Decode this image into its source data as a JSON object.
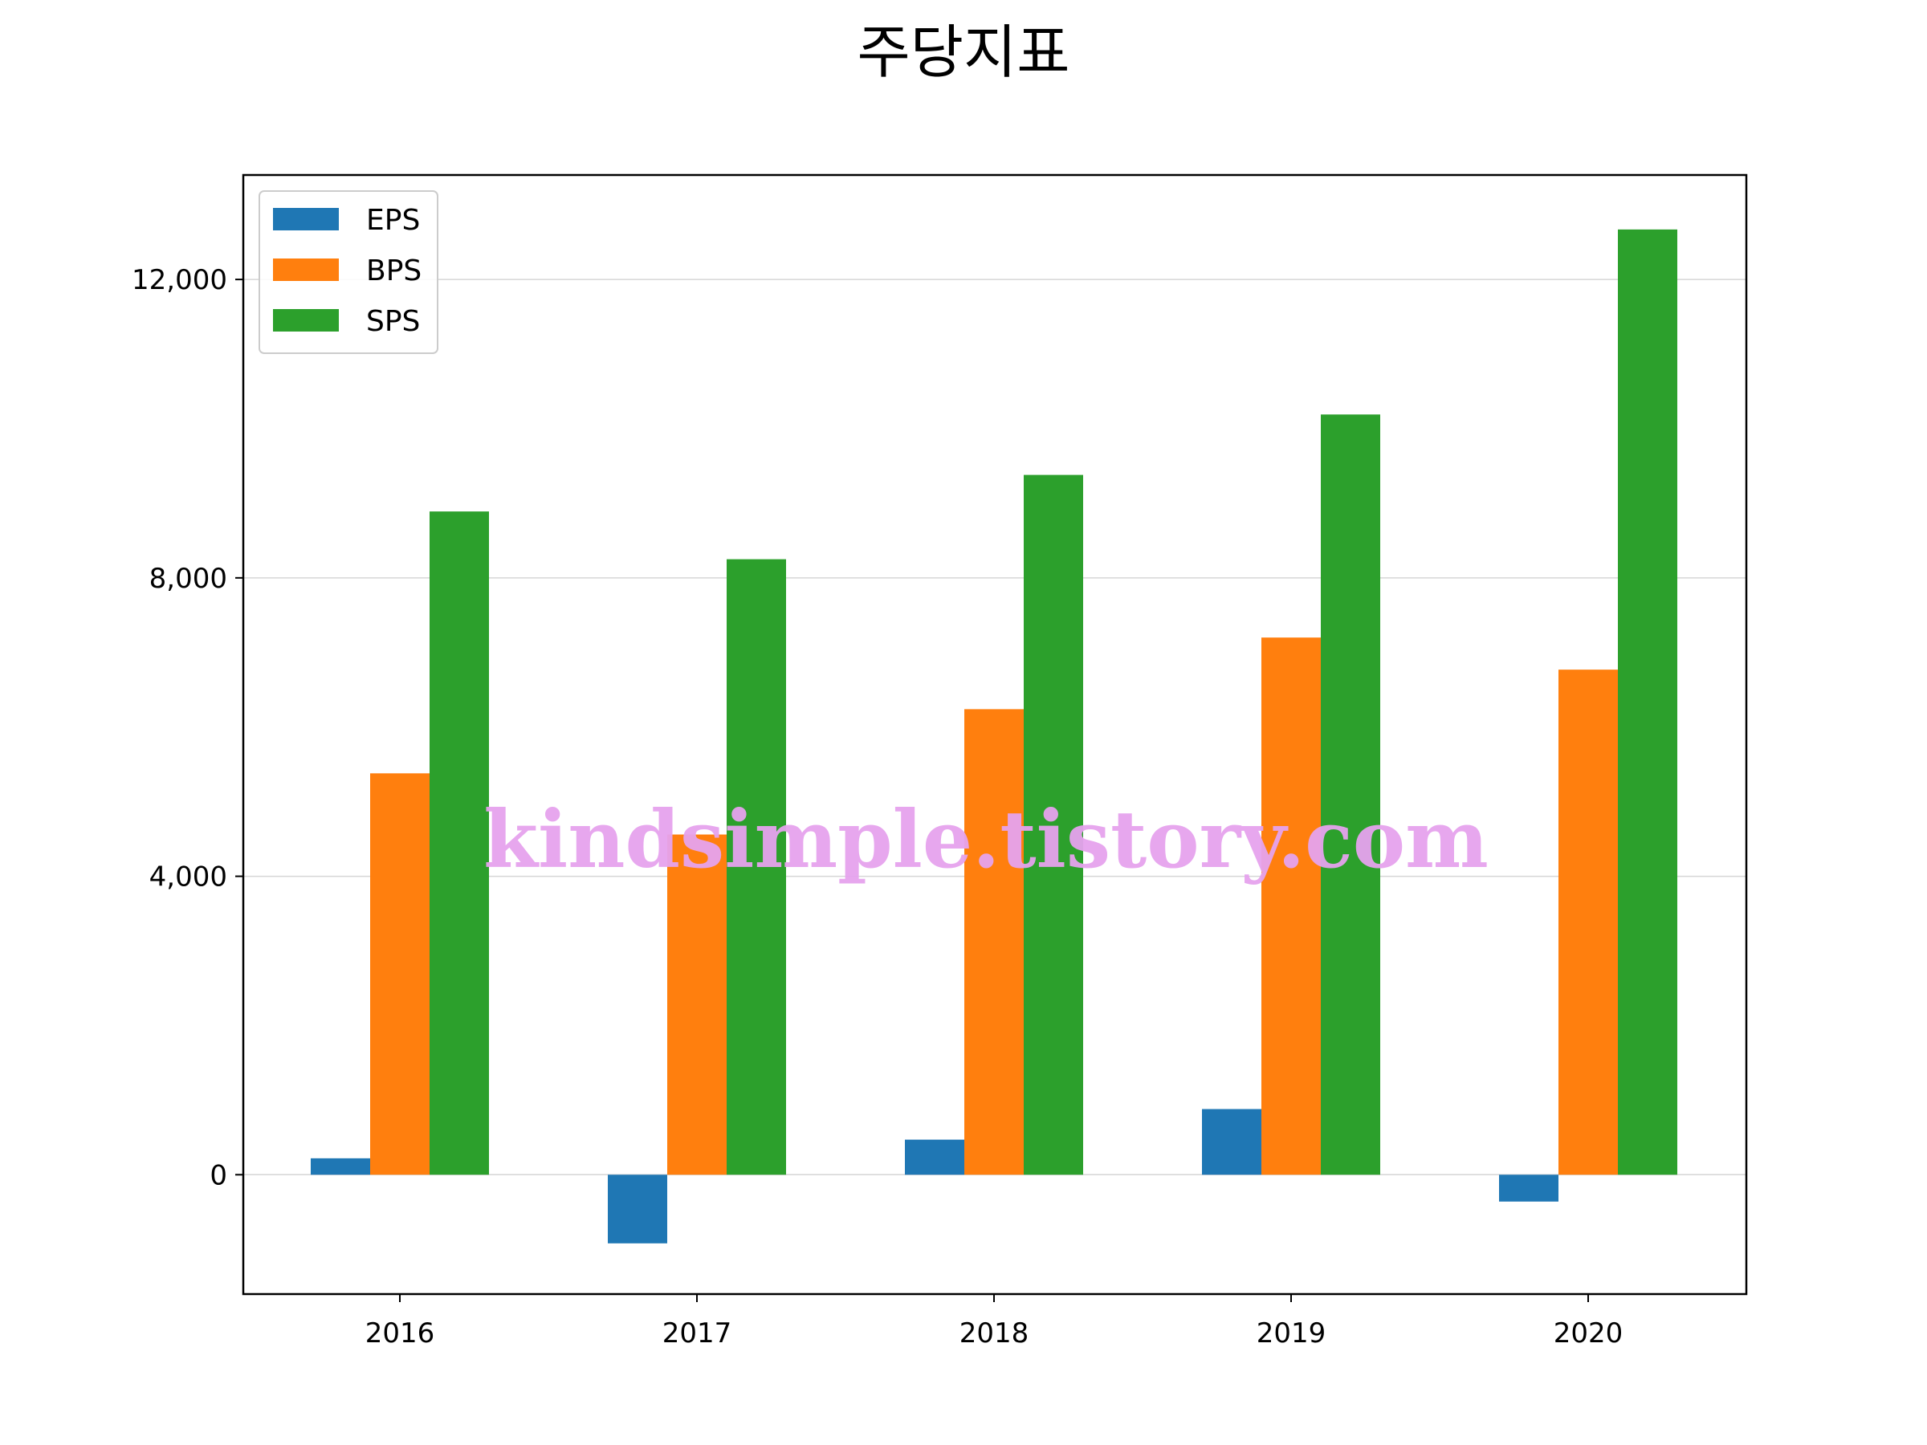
{
  "chart_data": {
    "type": "bar",
    "title": "주당지표",
    "xlabel": "",
    "ylabel": "",
    "categories": [
      "2016",
      "2017",
      "2018",
      "2019",
      "2020"
    ],
    "series": [
      {
        "name": "EPS",
        "color": "#1f77b4",
        "values": [
          220,
          -920,
          470,
          880,
          -360
        ]
      },
      {
        "name": "BPS",
        "color": "#ff7f0e",
        "values": [
          5380,
          4560,
          6240,
          7200,
          6770
        ]
      },
      {
        "name": "SPS",
        "color": "#2ca02c",
        "values": [
          8890,
          8250,
          9380,
          10190,
          12670
        ]
      }
    ],
    "ylim": [
      -1600,
      13400
    ],
    "yticks": [
      0,
      4000,
      8000,
      12000
    ],
    "ytick_labels": [
      "0",
      "4,000",
      "8,000",
      "12,000"
    ],
    "grid": "horizontal",
    "legend_position": "top-left"
  },
  "watermark": "kindsimple.tistory.com"
}
